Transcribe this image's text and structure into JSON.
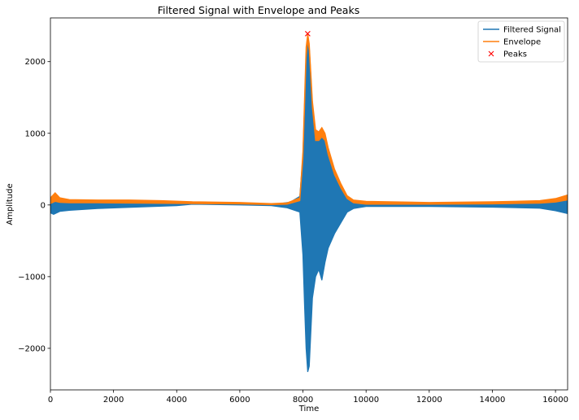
{
  "chart_data": {
    "type": "line",
    "title": "Filtered Signal with Envelope and Peaks",
    "xlabel": "Time",
    "ylabel": "Amplitude",
    "xlim": [
      0,
      16384
    ],
    "ylim": [
      -2580,
      2610
    ],
    "xticks": [
      0,
      2000,
      4000,
      6000,
      8000,
      10000,
      12000,
      14000,
      16000
    ],
    "xtick_labels": [
      "0",
      "2000",
      "4000",
      "6000",
      "8000",
      "10000",
      "12000",
      "14000",
      "16000"
    ],
    "yticks": [
      -2000,
      -1000,
      0,
      1000,
      2000
    ],
    "ytick_labels": [
      "−2000",
      "−1000",
      "0",
      "1000",
      "2000"
    ],
    "legend_position": "top-right",
    "grid": false,
    "series": [
      {
        "name": "Filtered Signal",
        "color": "#1f77b4",
        "style": "dense oscillating band",
        "upper": [
          [
            0,
            60
          ],
          [
            100,
            90
          ],
          [
            300,
            55
          ],
          [
            600,
            40
          ],
          [
            1500,
            30
          ],
          [
            3000,
            25
          ],
          [
            4500,
            28
          ],
          [
            6000,
            20
          ],
          [
            7200,
            15
          ],
          [
            7600,
            40
          ],
          [
            7900,
            120
          ],
          [
            8000,
            700
          ],
          [
            8050,
            1400
          ],
          [
            8100,
            2100
          ],
          [
            8150,
            2350
          ],
          [
            8200,
            2200
          ],
          [
            8300,
            1400
          ],
          [
            8400,
            900
          ],
          [
            8500,
            950
          ],
          [
            8600,
            1000
          ],
          [
            8700,
            950
          ],
          [
            8800,
            700
          ],
          [
            9000,
            420
          ],
          [
            9200,
            250
          ],
          [
            9400,
            100
          ],
          [
            9600,
            40
          ],
          [
            10000,
            20
          ],
          [
            12000,
            20
          ],
          [
            14000,
            30
          ],
          [
            15500,
            40
          ],
          [
            16000,
            60
          ],
          [
            16384,
            90
          ]
        ],
        "lower": [
          [
            0,
            -110
          ],
          [
            100,
            -130
          ],
          [
            300,
            -90
          ],
          [
            600,
            -75
          ],
          [
            1500,
            -50
          ],
          [
            3000,
            -25
          ],
          [
            4000,
            -10
          ],
          [
            4500,
            10
          ],
          [
            6000,
            0
          ],
          [
            7000,
            -10
          ],
          [
            7500,
            -40
          ],
          [
            7900,
            -100
          ],
          [
            8000,
            -700
          ],
          [
            8050,
            -1400
          ],
          [
            8100,
            -2000
          ],
          [
            8150,
            -2330
          ],
          [
            8200,
            -2250
          ],
          [
            8300,
            -1300
          ],
          [
            8400,
            -1000
          ],
          [
            8500,
            -900
          ],
          [
            8600,
            -1050
          ],
          [
            8700,
            -800
          ],
          [
            8800,
            -600
          ],
          [
            9000,
            -400
          ],
          [
            9200,
            -250
          ],
          [
            9400,
            -100
          ],
          [
            9600,
            -50
          ],
          [
            10000,
            -20
          ],
          [
            12000,
            -20
          ],
          [
            14000,
            -30
          ],
          [
            15500,
            -45
          ],
          [
            16000,
            -80
          ],
          [
            16384,
            -120
          ]
        ]
      },
      {
        "name": "Envelope",
        "color": "#ff7f0e",
        "style": "thick band",
        "upper": [
          [
            0,
            100
          ],
          [
            150,
            170
          ],
          [
            300,
            100
          ],
          [
            600,
            75
          ],
          [
            1500,
            70
          ],
          [
            2500,
            70
          ],
          [
            3500,
            60
          ],
          [
            4500,
            45
          ],
          [
            6000,
            35
          ],
          [
            7000,
            20
          ],
          [
            7500,
            30
          ],
          [
            7900,
            100
          ],
          [
            8000,
            750
          ],
          [
            8050,
            1500
          ],
          [
            8100,
            2200
          ],
          [
            8150,
            2390
          ],
          [
            8200,
            2250
          ],
          [
            8300,
            1450
          ],
          [
            8400,
            1050
          ],
          [
            8500,
            1020
          ],
          [
            8600,
            1080
          ],
          [
            8700,
            1000
          ],
          [
            8800,
            800
          ],
          [
            9000,
            500
          ],
          [
            9200,
            300
          ],
          [
            9400,
            130
          ],
          [
            9600,
            70
          ],
          [
            10000,
            50
          ],
          [
            12000,
            35
          ],
          [
            14000,
            45
          ],
          [
            15500,
            60
          ],
          [
            16000,
            90
          ],
          [
            16384,
            140
          ]
        ],
        "lower": [
          [
            0,
            20
          ],
          [
            150,
            50
          ],
          [
            300,
            35
          ],
          [
            600,
            30
          ],
          [
            1500,
            30
          ],
          [
            3000,
            25
          ],
          [
            4500,
            20
          ],
          [
            6000,
            15
          ],
          [
            7000,
            5
          ],
          [
            7500,
            10
          ],
          [
            7900,
            60
          ],
          [
            8000,
            650
          ],
          [
            8050,
            1350
          ],
          [
            8100,
            2050
          ],
          [
            8150,
            2300
          ],
          [
            8200,
            2150
          ],
          [
            8300,
            1350
          ],
          [
            8400,
            900
          ],
          [
            8500,
            900
          ],
          [
            8600,
            950
          ],
          [
            8700,
            900
          ],
          [
            8800,
            700
          ],
          [
            9000,
            420
          ],
          [
            9200,
            240
          ],
          [
            9400,
            90
          ],
          [
            9600,
            30
          ],
          [
            10000,
            10
          ],
          [
            12000,
            10
          ],
          [
            14000,
            15
          ],
          [
            15500,
            25
          ],
          [
            16000,
            40
          ],
          [
            16384,
            70
          ]
        ]
      }
    ],
    "peaks": {
      "name": "Peaks",
      "color": "#ff0000",
      "marker": "x",
      "points": [
        [
          8150,
          2390
        ]
      ]
    }
  }
}
